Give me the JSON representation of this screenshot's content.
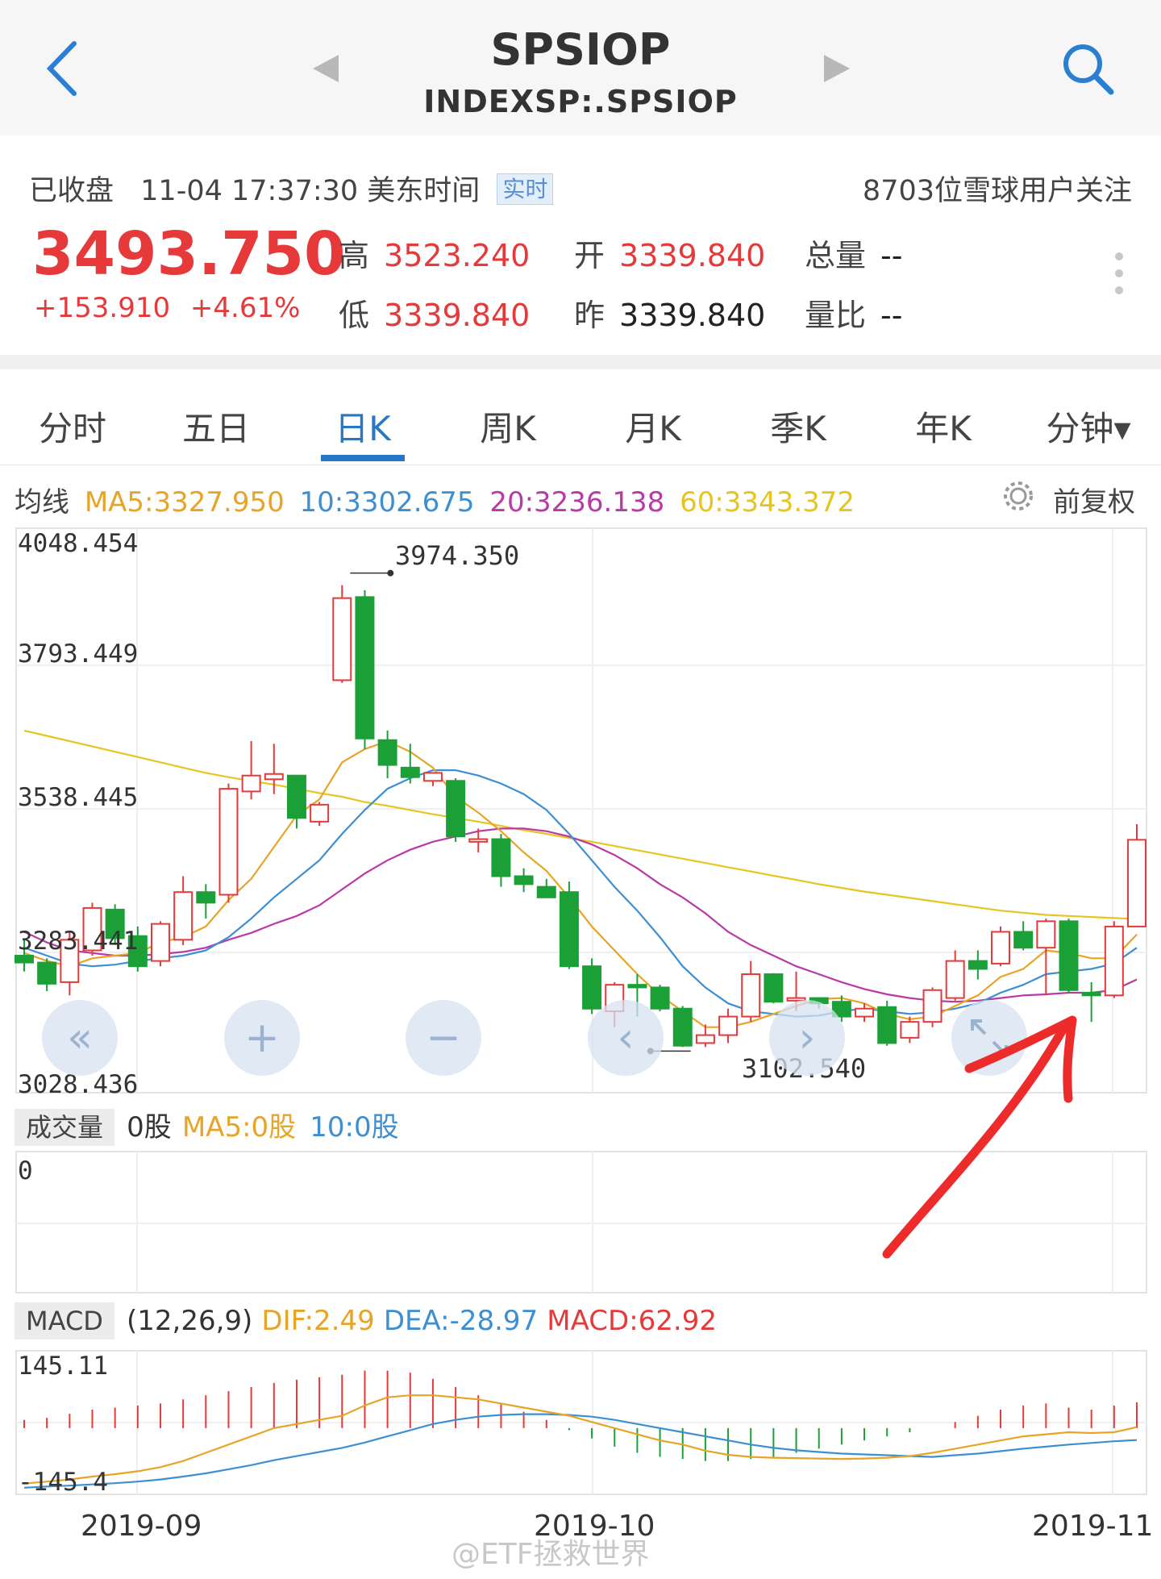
{
  "header": {
    "title": "SPSIOP",
    "subtitle": "INDEXSP:.SPSIOP"
  },
  "quote": {
    "status": "已收盘",
    "datetime": "11-04 17:37:30 美东时间",
    "realtime_badge": "实时",
    "followers": "8703位雪球用户关注",
    "price": "3493.750",
    "change": "+153.910",
    "change_pct": "+4.61%",
    "stats": [
      {
        "label": "高",
        "value": "3523.240",
        "color": "#e6393a"
      },
      {
        "label": "开",
        "value": "3339.840",
        "color": "#e6393a"
      },
      {
        "label": "总量",
        "value": "--",
        "color": "#222222"
      },
      {
        "label": "低",
        "value": "3339.840",
        "color": "#e6393a"
      },
      {
        "label": "昨",
        "value": "3339.840",
        "color": "#222222"
      },
      {
        "label": "量比",
        "value": "--",
        "color": "#222222"
      }
    ]
  },
  "tabs": [
    "分时",
    "五日",
    "日K",
    "周K",
    "月K",
    "季K",
    "年K",
    "分钟▾"
  ],
  "active_tab": "日K",
  "ma_legend": {
    "label": "均线",
    "ma5": "MA5:3327.950",
    "ma10": "10:3302.675",
    "ma20": "20:3236.138",
    "ma60": "60:3343.372",
    "adjust": "前复权",
    "colors": {
      "ma5": "#e8a427",
      "ma10": "#3d8fd1",
      "ma20": "#b93aa6",
      "ma60": "#e6c520"
    }
  },
  "kline": {
    "y_labels": [
      "4048.454",
      "3793.449",
      "3538.445",
      "3283.441",
      "3028.436"
    ],
    "high_marker": "3974.350",
    "low_marker": "3102.540"
  },
  "volume": {
    "tag": "成交量",
    "value": "0股",
    "ma5": "MA5:0股",
    "ma10": "10:0股",
    "y_label": "0"
  },
  "macd": {
    "tag": "MACD",
    "params": "(12,26,9)",
    "dif": "DIF:2.49",
    "dea": "DEA:-28.97",
    "macd": "MACD:62.92",
    "y_top": "145.11",
    "y_bottom": "-145.4"
  },
  "x_labels": [
    "2019-09",
    "2019-10",
    "2019-11"
  ],
  "watermark": "@ETF拯救世界",
  "colors": {
    "up": "#e6393a",
    "down": "#1aa036",
    "accent": "#2678c4"
  },
  "chart_data": {
    "type": "candlestick",
    "ylim": [
      3028.436,
      4048.454
    ],
    "candles": [
      {
        "o": 3275,
        "h": 3305,
        "l": 3245,
        "c": 3262
      },
      {
        "o": 3262,
        "h": 3270,
        "l": 3208,
        "c": 3222
      },
      {
        "o": 3225,
        "h": 3320,
        "l": 3200,
        "c": 3305
      },
      {
        "o": 3285,
        "h": 3375,
        "l": 3275,
        "c": 3365
      },
      {
        "o": 3362,
        "h": 3372,
        "l": 3295,
        "c": 3308
      },
      {
        "o": 3312,
        "h": 3330,
        "l": 3245,
        "c": 3255
      },
      {
        "o": 3265,
        "h": 3340,
        "l": 3255,
        "c": 3335
      },
      {
        "o": 3305,
        "h": 3425,
        "l": 3295,
        "c": 3395
      },
      {
        "o": 3395,
        "h": 3410,
        "l": 3345,
        "c": 3375
      },
      {
        "o": 3390,
        "h": 3600,
        "l": 3375,
        "c": 3590
      },
      {
        "o": 3585,
        "h": 3680,
        "l": 3570,
        "c": 3615
      },
      {
        "o": 3608,
        "h": 3675,
        "l": 3580,
        "c": 3618
      },
      {
        "o": 3615,
        "h": 3615,
        "l": 3515,
        "c": 3535
      },
      {
        "o": 3528,
        "h": 3565,
        "l": 3520,
        "c": 3560
      },
      {
        "o": 3795,
        "h": 3974.35,
        "l": 3790,
        "c": 3950
      },
      {
        "o": 3952,
        "h": 3965,
        "l": 3665,
        "c": 3685
      },
      {
        "o": 3682,
        "h": 3700,
        "l": 3610,
        "c": 3635
      },
      {
        "o": 3630,
        "h": 3675,
        "l": 3600,
        "c": 3612
      },
      {
        "o": 3605,
        "h": 3620,
        "l": 3595,
        "c": 3620
      },
      {
        "o": 3605,
        "h": 3610,
        "l": 3490,
        "c": 3500
      },
      {
        "o": 3490,
        "h": 3515,
        "l": 3470,
        "c": 3495
      },
      {
        "o": 3495,
        "h": 3505,
        "l": 3405,
        "c": 3425
      },
      {
        "o": 3425,
        "h": 3440,
        "l": 3395,
        "c": 3410
      },
      {
        "o": 3405,
        "h": 3420,
        "l": 3385,
        "c": 3385
      },
      {
        "o": 3395,
        "h": 3415,
        "l": 3250,
        "c": 3255
      },
      {
        "o": 3255,
        "h": 3270,
        "l": 3165,
        "c": 3175
      },
      {
        "o": 3170,
        "h": 3225,
        "l": 3140,
        "c": 3220
      },
      {
        "o": 3220,
        "h": 3240,
        "l": 3160,
        "c": 3215
      },
      {
        "o": 3215,
        "h": 3220,
        "l": 3170,
        "c": 3175
      },
      {
        "o": 3175,
        "h": 3180,
        "l": 3102.54,
        "c": 3105
      },
      {
        "o": 3110,
        "h": 3145,
        "l": 3102.54,
        "c": 3125
      },
      {
        "o": 3125,
        "h": 3175,
        "l": 3110,
        "c": 3160
      },
      {
        "o": 3160,
        "h": 3265,
        "l": 3150,
        "c": 3240
      },
      {
        "o": 3240,
        "h": 3242,
        "l": 3185,
        "c": 3188
      },
      {
        "o": 3190,
        "h": 3245,
        "l": 3170,
        "c": 3195
      },
      {
        "o": 3195,
        "h": 3195,
        "l": 3175,
        "c": 3185
      },
      {
        "o": 3188,
        "h": 3200,
        "l": 3150,
        "c": 3160
      },
      {
        "o": 3160,
        "h": 3185,
        "l": 3150,
        "c": 3175
      },
      {
        "o": 3178,
        "h": 3190,
        "l": 3105,
        "c": 3110
      },
      {
        "o": 3120,
        "h": 3160,
        "l": 3110,
        "c": 3150
      },
      {
        "o": 3150,
        "h": 3215,
        "l": 3140,
        "c": 3210
      },
      {
        "o": 3195,
        "h": 3285,
        "l": 3190,
        "c": 3265
      },
      {
        "o": 3265,
        "h": 3285,
        "l": 3230,
        "c": 3250
      },
      {
        "o": 3260,
        "h": 3330,
        "l": 3255,
        "c": 3320
      },
      {
        "o": 3320,
        "h": 3340,
        "l": 3285,
        "c": 3290
      },
      {
        "o": 3290,
        "h": 3345,
        "l": 3200,
        "c": 3340
      },
      {
        "o": 3340,
        "h": 3345,
        "l": 3205,
        "c": 3210
      },
      {
        "o": 3205,
        "h": 3225,
        "l": 3150,
        "c": 3200
      },
      {
        "o": 3200,
        "h": 3340,
        "l": 3195,
        "c": 3330
      },
      {
        "o": 3330,
        "h": 3523.24,
        "l": 3330,
        "c": 3493.75
      }
    ],
    "ma5": [
      3280,
      3265,
      3255,
      3270,
      3275,
      3280,
      3300,
      3310,
      3330,
      3380,
      3420,
      3480,
      3540,
      3570,
      3640,
      3665,
      3680,
      3660,
      3630,
      3575,
      3545,
      3510,
      3470,
      3435,
      3385,
      3330,
      3285,
      3240,
      3200,
      3170,
      3140,
      3140,
      3150,
      3165,
      3180,
      3193,
      3195,
      3185,
      3165,
      3155,
      3160,
      3180,
      3200,
      3235,
      3250,
      3285,
      3280,
      3270,
      3270,
      3315
    ],
    "ma10": [
      3290,
      3275,
      3260,
      3255,
      3258,
      3265,
      3270,
      3275,
      3285,
      3310,
      3345,
      3385,
      3420,
      3455,
      3505,
      3550,
      3590,
      3610,
      3625,
      3625,
      3615,
      3600,
      3580,
      3550,
      3505,
      3455,
      3405,
      3360,
      3310,
      3255,
      3215,
      3185,
      3170,
      3165,
      3160,
      3162,
      3170,
      3175,
      3170,
      3165,
      3168,
      3175,
      3185,
      3205,
      3220,
      3240,
      3245,
      3250,
      3260,
      3290
    ],
    "ma20": [
      3320,
      3300,
      3285,
      3280,
      3275,
      3275,
      3278,
      3282,
      3290,
      3305,
      3318,
      3335,
      3350,
      3370,
      3400,
      3430,
      3455,
      3475,
      3490,
      3500,
      3510,
      3515,
      3515,
      3510,
      3500,
      3485,
      3465,
      3440,
      3410,
      3385,
      3355,
      3320,
      3295,
      3275,
      3255,
      3240,
      3225,
      3212,
      3202,
      3195,
      3190,
      3188,
      3190,
      3195,
      3200,
      3202,
      3205,
      3205,
      3210,
      3230
    ],
    "ma60": [
      3700,
      3690,
      3680,
      3670,
      3660,
      3650,
      3640,
      3630,
      3620,
      3612,
      3605,
      3598,
      3590,
      3582,
      3575,
      3565,
      3558,
      3550,
      3542,
      3535,
      3528,
      3520,
      3512,
      3505,
      3497,
      3490,
      3482,
      3474,
      3466,
      3458,
      3450,
      3442,
      3434,
      3426,
      3418,
      3410,
      3403,
      3396,
      3390,
      3384,
      3378,
      3372,
      3366,
      3360,
      3356,
      3352,
      3350,
      3348,
      3346,
      3344
    ],
    "macd_ylim": [
      -145.4,
      145.11
    ],
    "macd_hist": [
      20,
      25,
      35,
      45,
      50,
      55,
      60,
      70,
      80,
      90,
      100,
      110,
      118,
      124,
      130,
      140,
      140,
      135,
      120,
      100,
      80,
      60,
      40,
      20,
      -5,
      -25,
      -45,
      -60,
      -70,
      -75,
      -80,
      -80,
      -75,
      -70,
      -60,
      -50,
      -40,
      -30,
      -20,
      -10,
      0,
      15,
      30,
      45,
      55,
      60,
      50,
      45,
      55,
      62.92
    ],
    "dif": [
      -135,
      -130,
      -125,
      -118,
      -112,
      -105,
      -95,
      -80,
      -60,
      -40,
      -20,
      0,
      10,
      20,
      30,
      55,
      75,
      80,
      80,
      75,
      70,
      60,
      50,
      40,
      30,
      15,
      0,
      -15,
      -30,
      -40,
      -55,
      -65,
      -70,
      -72,
      -73,
      -74,
      -75,
      -74,
      -72,
      -68,
      -60,
      -50,
      -40,
      -30,
      -20,
      -15,
      -10,
      -12,
      -10,
      2.49
    ],
    "dea": [
      -145,
      -142,
      -140,
      -137,
      -134,
      -130,
      -125,
      -118,
      -110,
      -100,
      -90,
      -78,
      -68,
      -58,
      -48,
      -35,
      -20,
      -5,
      10,
      20,
      28,
      32,
      34,
      34,
      32,
      28,
      20,
      10,
      0,
      -10,
      -20,
      -30,
      -40,
      -48,
      -54,
      -58,
      -62,
      -64,
      -66,
      -68,
      -70,
      -66,
      -62,
      -56,
      -50,
      -45,
      -40,
      -36,
      -32,
      -28.97
    ]
  }
}
